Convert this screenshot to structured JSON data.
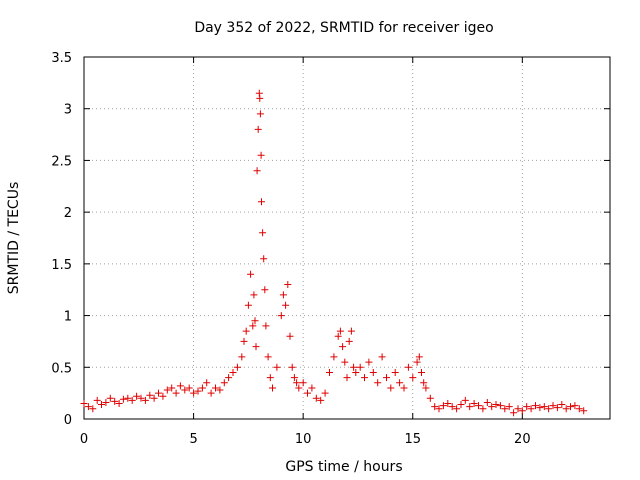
{
  "chart_data": {
    "type": "scatter",
    "title": "Day 352 of 2022, SRMTID for receiver igeo",
    "xlabel": "GPS time / hours",
    "ylabel": "SRMTID / TECUs",
    "xlim": [
      0,
      24
    ],
    "ylim": [
      0,
      3.5
    ],
    "x_ticks": [
      0,
      5,
      10,
      15,
      20
    ],
    "x_tick_labels": [
      "0",
      "5",
      "10",
      "15",
      "20"
    ],
    "y_ticks": [
      0,
      0.5,
      1,
      1.5,
      2,
      2.5,
      3,
      3.5
    ],
    "y_tick_labels": [
      "0",
      "0.5",
      "1",
      "1.5",
      "2",
      "2.5",
      "3",
      "3.5"
    ],
    "grid": true,
    "marker": "+",
    "color": "#e00000",
    "series": [
      {
        "name": "SRMTID",
        "x": [
          0.0,
          0.2,
          0.4,
          0.6,
          0.8,
          1.0,
          1.2,
          1.4,
          1.6,
          1.8,
          2.0,
          2.2,
          2.4,
          2.6,
          2.8,
          3.0,
          3.2,
          3.4,
          3.6,
          3.8,
          4.0,
          4.2,
          4.4,
          4.6,
          4.8,
          5.0,
          5.2,
          5.4,
          5.6,
          5.8,
          6.0,
          6.2,
          6.4,
          6.6,
          6.8,
          7.0,
          7.2,
          7.3,
          7.4,
          7.5,
          7.6,
          7.7,
          7.75,
          7.8,
          7.85,
          7.9,
          7.95,
          8.0,
          8.02,
          8.05,
          8.08,
          8.1,
          8.15,
          8.2,
          8.25,
          8.3,
          8.4,
          8.5,
          8.6,
          8.8,
          9.0,
          9.1,
          9.2,
          9.3,
          9.4,
          9.5,
          9.6,
          9.7,
          9.8,
          10.0,
          10.2,
          10.4,
          10.6,
          10.8,
          11.0,
          11.2,
          11.4,
          11.6,
          11.7,
          11.8,
          11.9,
          12.0,
          12.1,
          12.2,
          12.3,
          12.4,
          12.6,
          12.8,
          13.0,
          13.2,
          13.4,
          13.6,
          13.8,
          14.0,
          14.2,
          14.4,
          14.6,
          14.8,
          15.0,
          15.2,
          15.3,
          15.4,
          15.5,
          15.6,
          15.8,
          16.0,
          16.2,
          16.4,
          16.6,
          16.8,
          17.0,
          17.2,
          17.4,
          17.6,
          17.8,
          18.0,
          18.2,
          18.4,
          18.6,
          18.8,
          19.0,
          19.2,
          19.4,
          19.6,
          19.8,
          20.0,
          20.2,
          20.4,
          20.6,
          20.8,
          21.0,
          21.2,
          21.4,
          21.6,
          21.8,
          22.0,
          22.2,
          22.4,
          22.6,
          22.8
        ],
        "y": [
          0.15,
          0.12,
          0.1,
          0.18,
          0.14,
          0.16,
          0.2,
          0.17,
          0.15,
          0.19,
          0.2,
          0.18,
          0.22,
          0.2,
          0.18,
          0.23,
          0.2,
          0.25,
          0.22,
          0.28,
          0.3,
          0.25,
          0.32,
          0.28,
          0.3,
          0.25,
          0.27,
          0.3,
          0.35,
          0.25,
          0.3,
          0.28,
          0.35,
          0.4,
          0.45,
          0.5,
          0.6,
          0.75,
          0.85,
          1.1,
          1.4,
          0.9,
          1.2,
          0.95,
          0.7,
          2.4,
          2.8,
          3.15,
          3.1,
          2.95,
          2.55,
          2.1,
          1.8,
          1.55,
          1.25,
          0.9,
          0.6,
          0.4,
          0.3,
          0.5,
          1.0,
          1.2,
          1.1,
          1.3,
          0.8,
          0.5,
          0.4,
          0.35,
          0.3,
          0.35,
          0.25,
          0.3,
          0.2,
          0.18,
          0.25,
          0.45,
          0.6,
          0.8,
          0.85,
          0.7,
          0.55,
          0.4,
          0.75,
          0.85,
          0.5,
          0.45,
          0.5,
          0.4,
          0.55,
          0.45,
          0.35,
          0.6,
          0.4,
          0.3,
          0.45,
          0.35,
          0.3,
          0.5,
          0.4,
          0.55,
          0.6,
          0.45,
          0.35,
          0.3,
          0.2,
          0.12,
          0.1,
          0.13,
          0.15,
          0.12,
          0.1,
          0.14,
          0.18,
          0.12,
          0.15,
          0.13,
          0.1,
          0.16,
          0.12,
          0.14,
          0.13,
          0.1,
          0.12,
          0.06,
          0.1,
          0.08,
          0.12,
          0.1,
          0.13,
          0.11,
          0.12,
          0.1,
          0.13,
          0.11,
          0.14,
          0.1,
          0.12,
          0.13,
          0.1,
          0.08
        ]
      }
    ]
  }
}
